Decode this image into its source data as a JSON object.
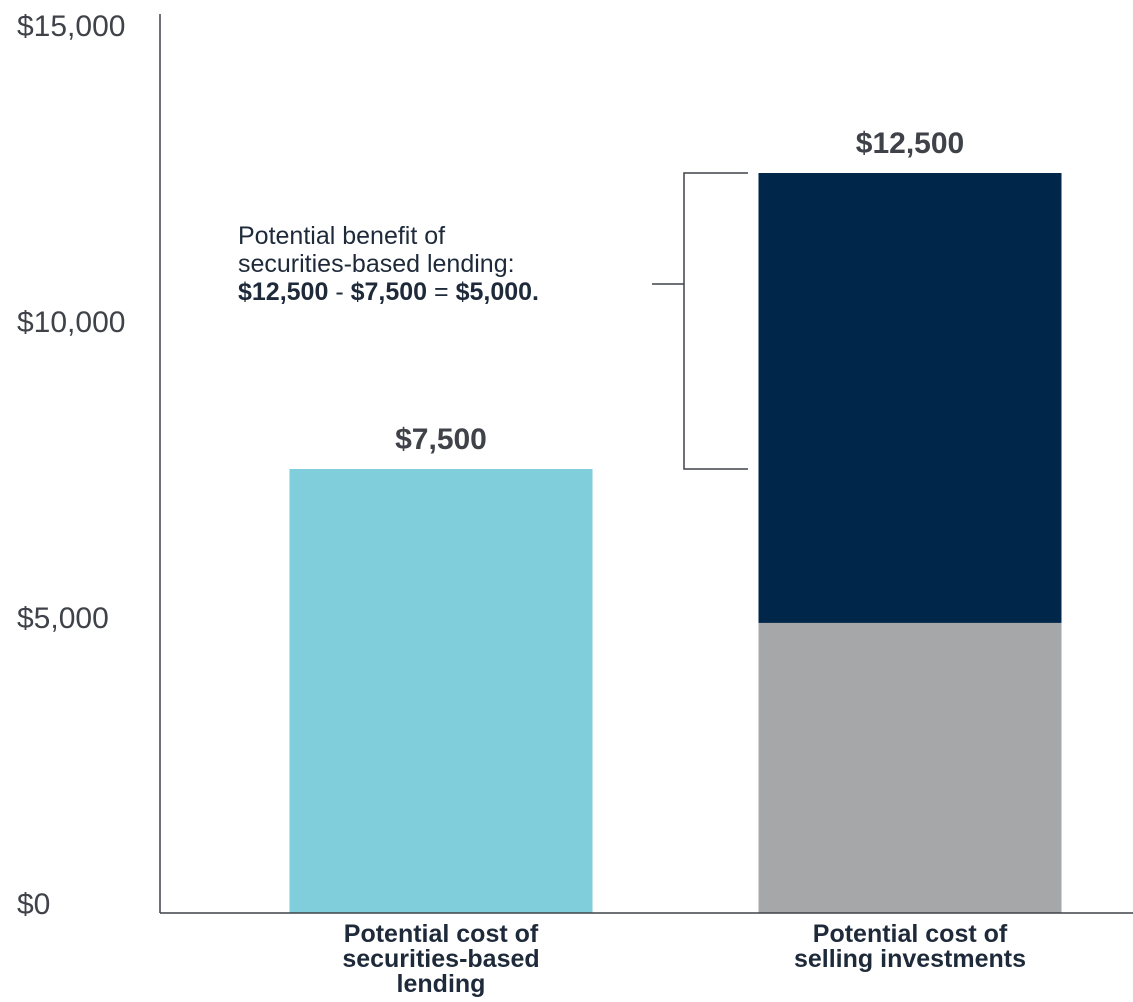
{
  "chart_data": {
    "type": "bar",
    "stacked": true,
    "ylim": [
      0,
      15000
    ],
    "y_ticks": [
      "$0",
      "$5,000",
      "$10,000",
      "$15,000"
    ],
    "y_tick_values": [
      0,
      5000,
      10000,
      15000
    ],
    "grid": false,
    "categories": [
      [
        "Potential cost of",
        "securities-based",
        "lending"
      ],
      [
        "Potential cost of",
        "selling investments"
      ]
    ],
    "series": [
      {
        "values": [
          7500,
          4900
        ],
        "colors": [
          "#80cedb",
          "#a6a7a9"
        ]
      },
      {
        "values": [
          0,
          7600
        ],
        "colors": [
          "#00274a",
          "#00274a"
        ]
      }
    ],
    "totals": [
      7500,
      12500
    ],
    "data_labels": [
      "$7,500",
      "$12,500"
    ],
    "annotation": {
      "line1": "Potential benefit of",
      "line2": "securities-based lending:",
      "line3_a": "$12,500",
      "line3_b": " - ",
      "line3_c": "$7,500",
      "line3_d": " = ",
      "line3_e": "$5,000."
    }
  }
}
